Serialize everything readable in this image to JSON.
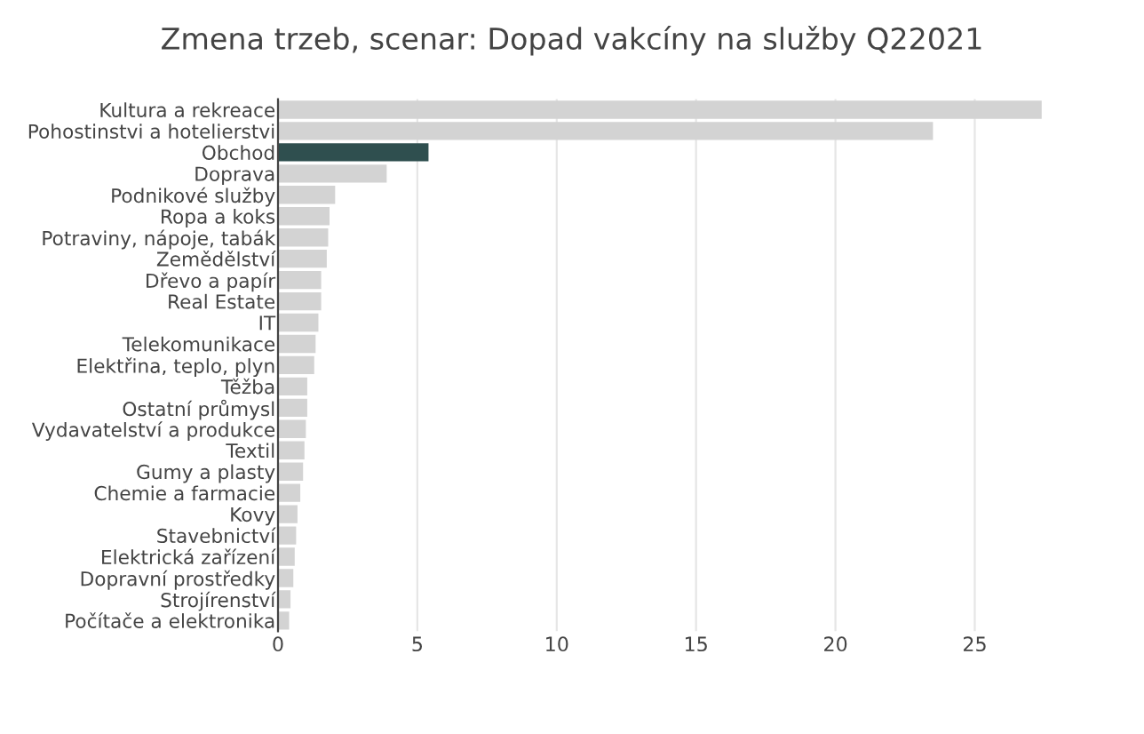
{
  "chart_data": {
    "type": "bar",
    "orientation": "horizontal",
    "title": "Zmena trzeb, scenar: Dopad vakcíny na služby Q22021",
    "categories": [
      "Kultura a rekreace",
      "Pohostinstvi a hotelierstvi",
      "Obchod",
      "Doprava",
      "Podnikové služby",
      "Ropa a koks",
      "Potraviny, nápoje, tabák",
      "Zemědělství",
      "Dřevo a papír",
      "Real Estate",
      "IT",
      "Telekomunikace",
      "Elektřina, teplo, plyn",
      "Těžba",
      "Ostatní průmysl",
      "Vydavatelství a produkce",
      "Textil",
      "Gumy a plasty",
      "Chemie a farmacie",
      "Kovy",
      "Stavebnictví",
      "Elektrická zařízení",
      "Dopravní prostředky",
      "Strojírenství",
      "Počítače a elektronika"
    ],
    "values": [
      27.4,
      23.5,
      5.4,
      3.9,
      2.05,
      1.85,
      1.8,
      1.75,
      1.55,
      1.55,
      1.45,
      1.35,
      1.3,
      1.05,
      1.05,
      1.0,
      0.95,
      0.9,
      0.8,
      0.7,
      0.65,
      0.6,
      0.55,
      0.45,
      0.4
    ],
    "colors": [
      "#d3d3d3",
      "#d3d3d3",
      "#2f4f4f",
      "#d3d3d3",
      "#d3d3d3",
      "#d3d3d3",
      "#d3d3d3",
      "#d3d3d3",
      "#d3d3d3",
      "#d3d3d3",
      "#d3d3d3",
      "#d3d3d3",
      "#d3d3d3",
      "#d3d3d3",
      "#d3d3d3",
      "#d3d3d3",
      "#d3d3d3",
      "#d3d3d3",
      "#d3d3d3",
      "#d3d3d3",
      "#d3d3d3",
      "#d3d3d3",
      "#d3d3d3",
      "#d3d3d3",
      "#d3d3d3"
    ],
    "xlim": [
      0,
      27.5
    ],
    "xticks": [
      0,
      5,
      10,
      15,
      20,
      25
    ],
    "grid": "x"
  }
}
